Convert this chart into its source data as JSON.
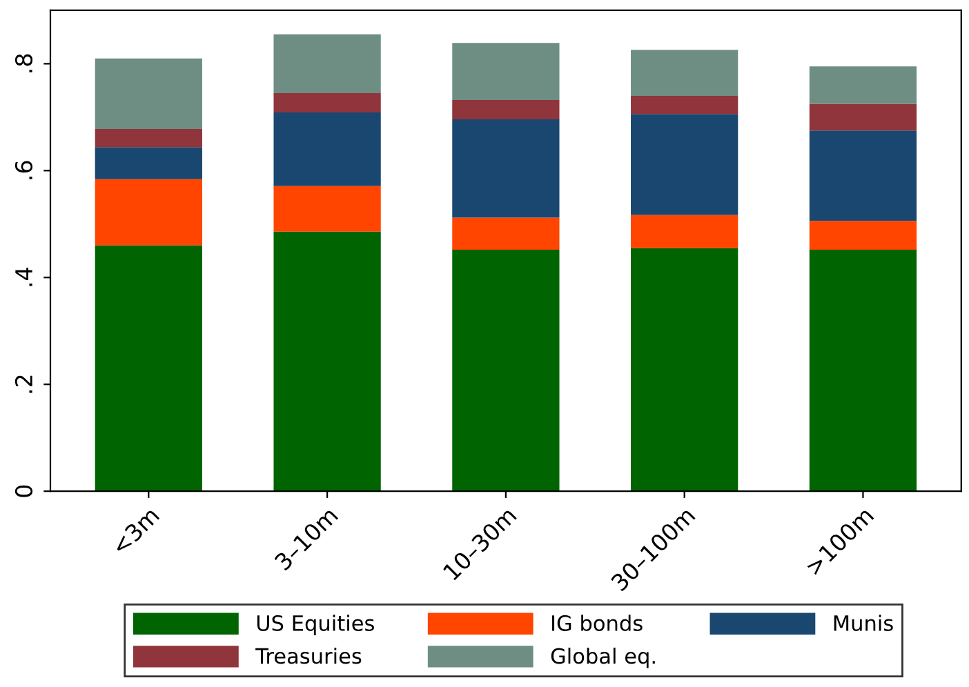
{
  "chart_data": {
    "type": "bar",
    "stacked": true,
    "categories": [
      "<3m",
      "3–10m",
      "10–30m",
      "30–100m",
      ">100m"
    ],
    "series": [
      {
        "name": "US Equities",
        "color": "#006400",
        "values": [
          0.46,
          0.486,
          0.452,
          0.455,
          0.452
        ]
      },
      {
        "name": "IG bonds",
        "color": "#ff4500",
        "values": [
          0.124,
          0.085,
          0.06,
          0.062,
          0.054
        ]
      },
      {
        "name": "Munis",
        "color": "#1a476f",
        "values": [
          0.06,
          0.138,
          0.184,
          0.189,
          0.169
        ]
      },
      {
        "name": "Treasuries",
        "color": "#90353b",
        "values": [
          0.034,
          0.036,
          0.036,
          0.034,
          0.05
        ]
      },
      {
        "name": "Global eq.",
        "color": "#6e8e84",
        "values": [
          0.132,
          0.11,
          0.107,
          0.086,
          0.07
        ]
      }
    ],
    "ylim": [
      0,
      0.9
    ],
    "yticks": [
      {
        "value": 0,
        "label": "0"
      },
      {
        "value": 0.2,
        "label": ".2"
      },
      {
        "value": 0.4,
        "label": ".4"
      },
      {
        "value": 0.6,
        "label": ".6"
      },
      {
        "value": 0.8,
        "label": ".8"
      }
    ],
    "grid": false,
    "legend": "bottom"
  }
}
